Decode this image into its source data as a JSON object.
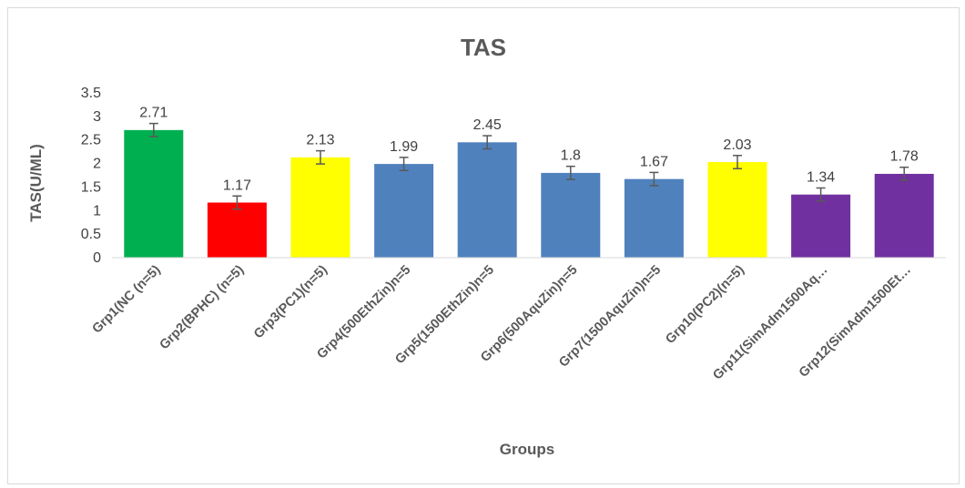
{
  "chart_data": {
    "type": "bar",
    "title": "TAS",
    "xlabel": "Groups",
    "ylabel": "TAS(U/ML)",
    "ylim": [
      0,
      3.5
    ],
    "yticks": [
      "0",
      "0.5",
      "1",
      "1.5",
      "2",
      "2.5",
      "3",
      "3.5"
    ],
    "grid": false,
    "legend": "none",
    "error_bar": 0.14,
    "categories": [
      "Grp1(NC (n=5)",
      "Grp2(BPHC) (n=5)",
      "Grp3(PC1)(n=5)",
      "Grp4(500EthZin)n=5",
      "Grp5(1500EthZin)n=5",
      "Grp6(500AquZin)n=5",
      "Grp7(1500AquZin)n=5",
      "Grp10(PC2)(n=5)",
      "Grp11(SimAdm1500Aq…",
      "Grp12(SimAdm1500Et…"
    ],
    "values": [
      2.71,
      1.17,
      2.13,
      1.99,
      2.45,
      1.8,
      1.67,
      2.03,
      1.34,
      1.78
    ],
    "value_labels": [
      "2.71",
      "1.17",
      "2.13",
      "1.99",
      "2.45",
      "1.8",
      "1.67",
      "2.03",
      "1.34",
      "1.78"
    ],
    "colors": [
      "#00b050",
      "#ff0000",
      "#ffff00",
      "#4f81bd",
      "#4f81bd",
      "#4f81bd",
      "#4f81bd",
      "#ffff00",
      "#7030a0",
      "#7030a0"
    ]
  }
}
